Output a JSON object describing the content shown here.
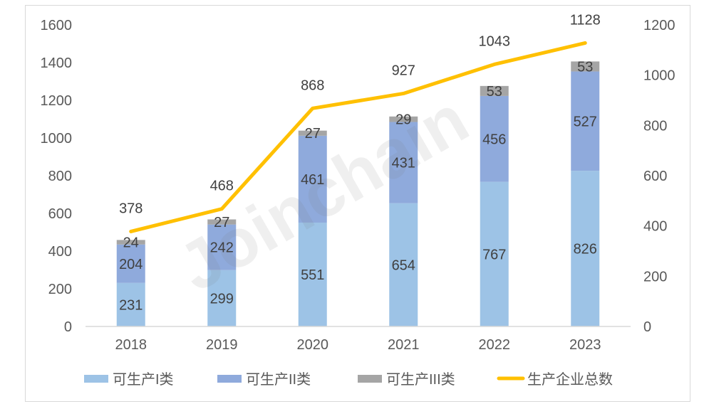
{
  "chart_data": {
    "type": "bar+line",
    "categories": [
      "2018",
      "2019",
      "2020",
      "2021",
      "2022",
      "2023"
    ],
    "series": [
      {
        "name": "可生产I类",
        "type": "stacked-bar",
        "axis": "left",
        "color": "#9dc3e6",
        "values": [
          231,
          299,
          551,
          654,
          767,
          826
        ]
      },
      {
        "name": "可生产II类",
        "type": "stacked-bar",
        "axis": "left",
        "color": "#8faadc",
        "values": [
          204,
          242,
          461,
          431,
          456,
          527
        ]
      },
      {
        "name": "可生产III类",
        "type": "stacked-bar",
        "axis": "left",
        "color": "#a5a5a5",
        "values": [
          24,
          27,
          27,
          29,
          53,
          53
        ]
      },
      {
        "name": "生产企业总数",
        "type": "line",
        "axis": "right",
        "color": "#ffc000",
        "values": [
          378,
          468,
          868,
          927,
          1043,
          1128
        ]
      }
    ],
    "y_left": {
      "range": [
        0,
        1600
      ],
      "ticks": [
        0,
        200,
        400,
        600,
        800,
        1000,
        1200,
        1400,
        1600
      ]
    },
    "y_right": {
      "range": [
        0,
        1200
      ],
      "ticks": [
        0,
        200,
        400,
        600,
        800,
        1000,
        1200
      ]
    },
    "grid": false,
    "legend": "bottom",
    "watermark": "Joinchain"
  }
}
